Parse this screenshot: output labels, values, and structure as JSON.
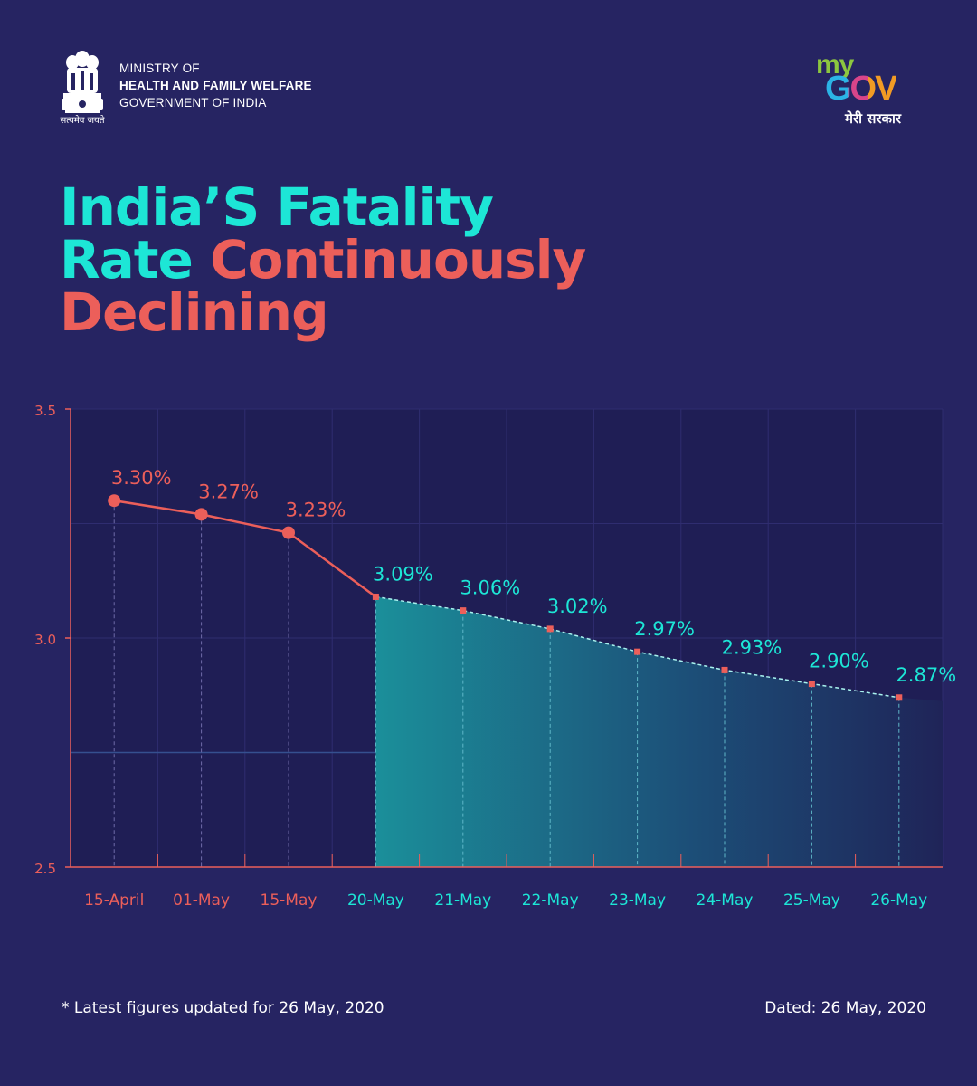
{
  "header": {
    "emblem_motto": "सत्यमेव जयते",
    "ministry_line1": "MINISTRY OF",
    "ministry_line2": "HEALTH AND FAMILY WELFARE",
    "ministry_line3": "GOVERNMENT OF INDIA",
    "mygov_my": "my",
    "mygov_gov": "GOV",
    "mygov_tagline": "मेरी सरकार"
  },
  "title": {
    "part1": "India’S Fatality",
    "part2": "Rate",
    "part3": "Continuously",
    "part4": "Declining"
  },
  "colors": {
    "background": "#262462",
    "plot_bg": "#1f1e55",
    "cyan": "#1de6d6",
    "coral": "#ec5f5a"
  },
  "chart_data": {
    "type": "line",
    "categories": [
      "15-April",
      "01-May",
      "15-May",
      "20-May",
      "21-May",
      "22-May",
      "23-May",
      "24-May",
      "25-May",
      "26-May"
    ],
    "values": [
      3.3,
      3.27,
      3.23,
      3.09,
      3.06,
      3.02,
      2.97,
      2.93,
      2.9,
      2.87
    ],
    "labels": [
      "3.30%",
      "3.27%",
      "3.23%",
      "3.09%",
      "3.06%",
      "3.02%",
      "2.97%",
      "2.93%",
      "2.90%",
      "2.87%"
    ],
    "ylim": [
      2.5,
      3.5
    ],
    "yticks": [
      "3.5",
      "3.0",
      "2.5"
    ],
    "ytick_values": [
      3.5,
      3.0,
      2.5
    ],
    "highlight_from_index": 3,
    "grid": true
  },
  "footer": {
    "note": "* Latest figures updated for 26 May, 2020",
    "dated": "Dated: 26 May, 2020"
  }
}
